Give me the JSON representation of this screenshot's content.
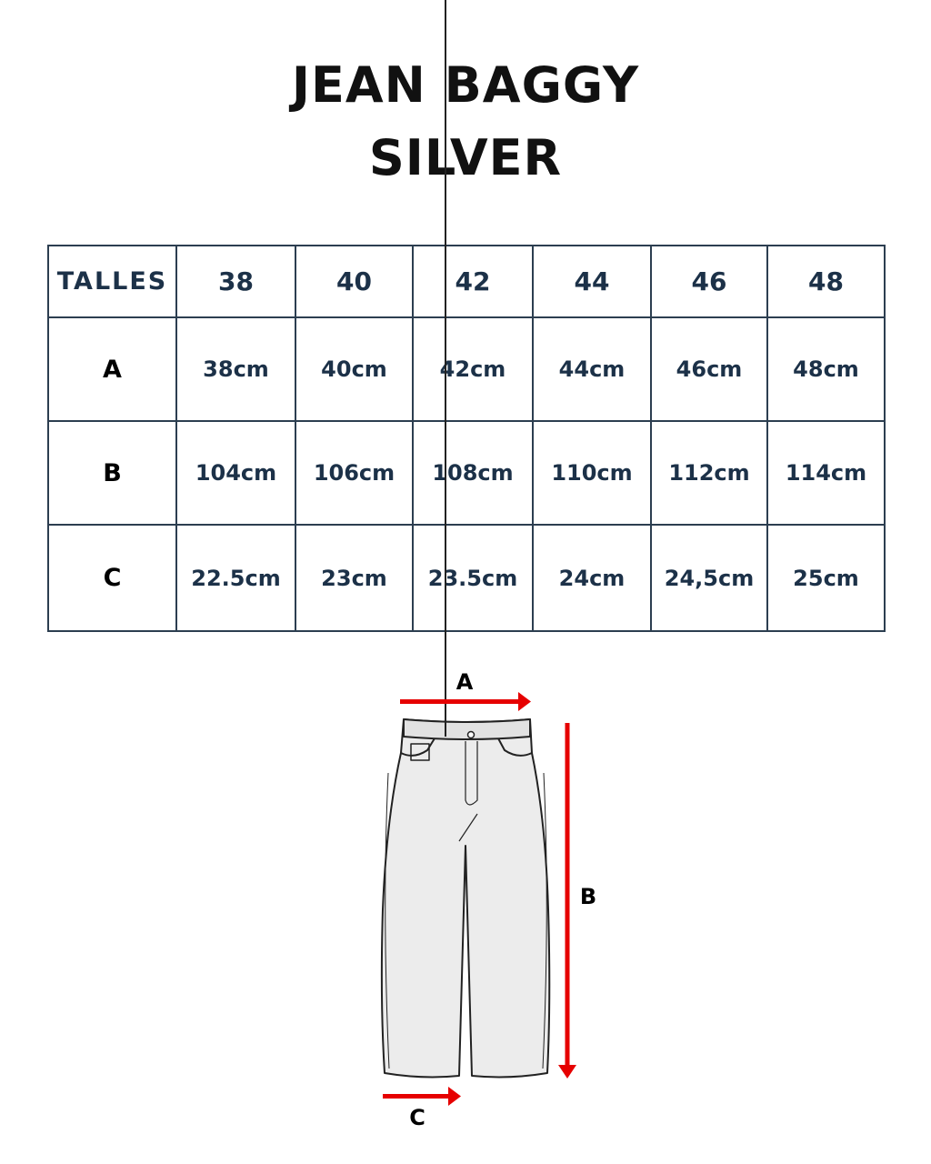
{
  "title_line1": "JEAN BAGGY",
  "title_line2": "SILVER",
  "table": {
    "header": [
      "TALLES",
      "38",
      "40",
      "42",
      "44",
      "46",
      "48"
    ],
    "rows": [
      {
        "label": "A",
        "values": [
          "38cm",
          "40cm",
          "42cm",
          "44cm",
          "46cm",
          "48cm"
        ]
      },
      {
        "label": "B",
        "values": [
          "104cm",
          "106cm",
          "108cm",
          "110cm",
          "112cm",
          "114cm"
        ]
      },
      {
        "label": "C",
        "values": [
          "22.5cm",
          "23cm",
          "23.5cm",
          "24cm",
          "24,5cm",
          "25cm"
        ]
      }
    ]
  },
  "diagram": {
    "label_a": "A",
    "label_b": "B",
    "label_c": "C",
    "arrow_color": "#e60000"
  },
  "colors": {
    "table_border": "#2c3e50",
    "table_text": "#1c3148"
  }
}
